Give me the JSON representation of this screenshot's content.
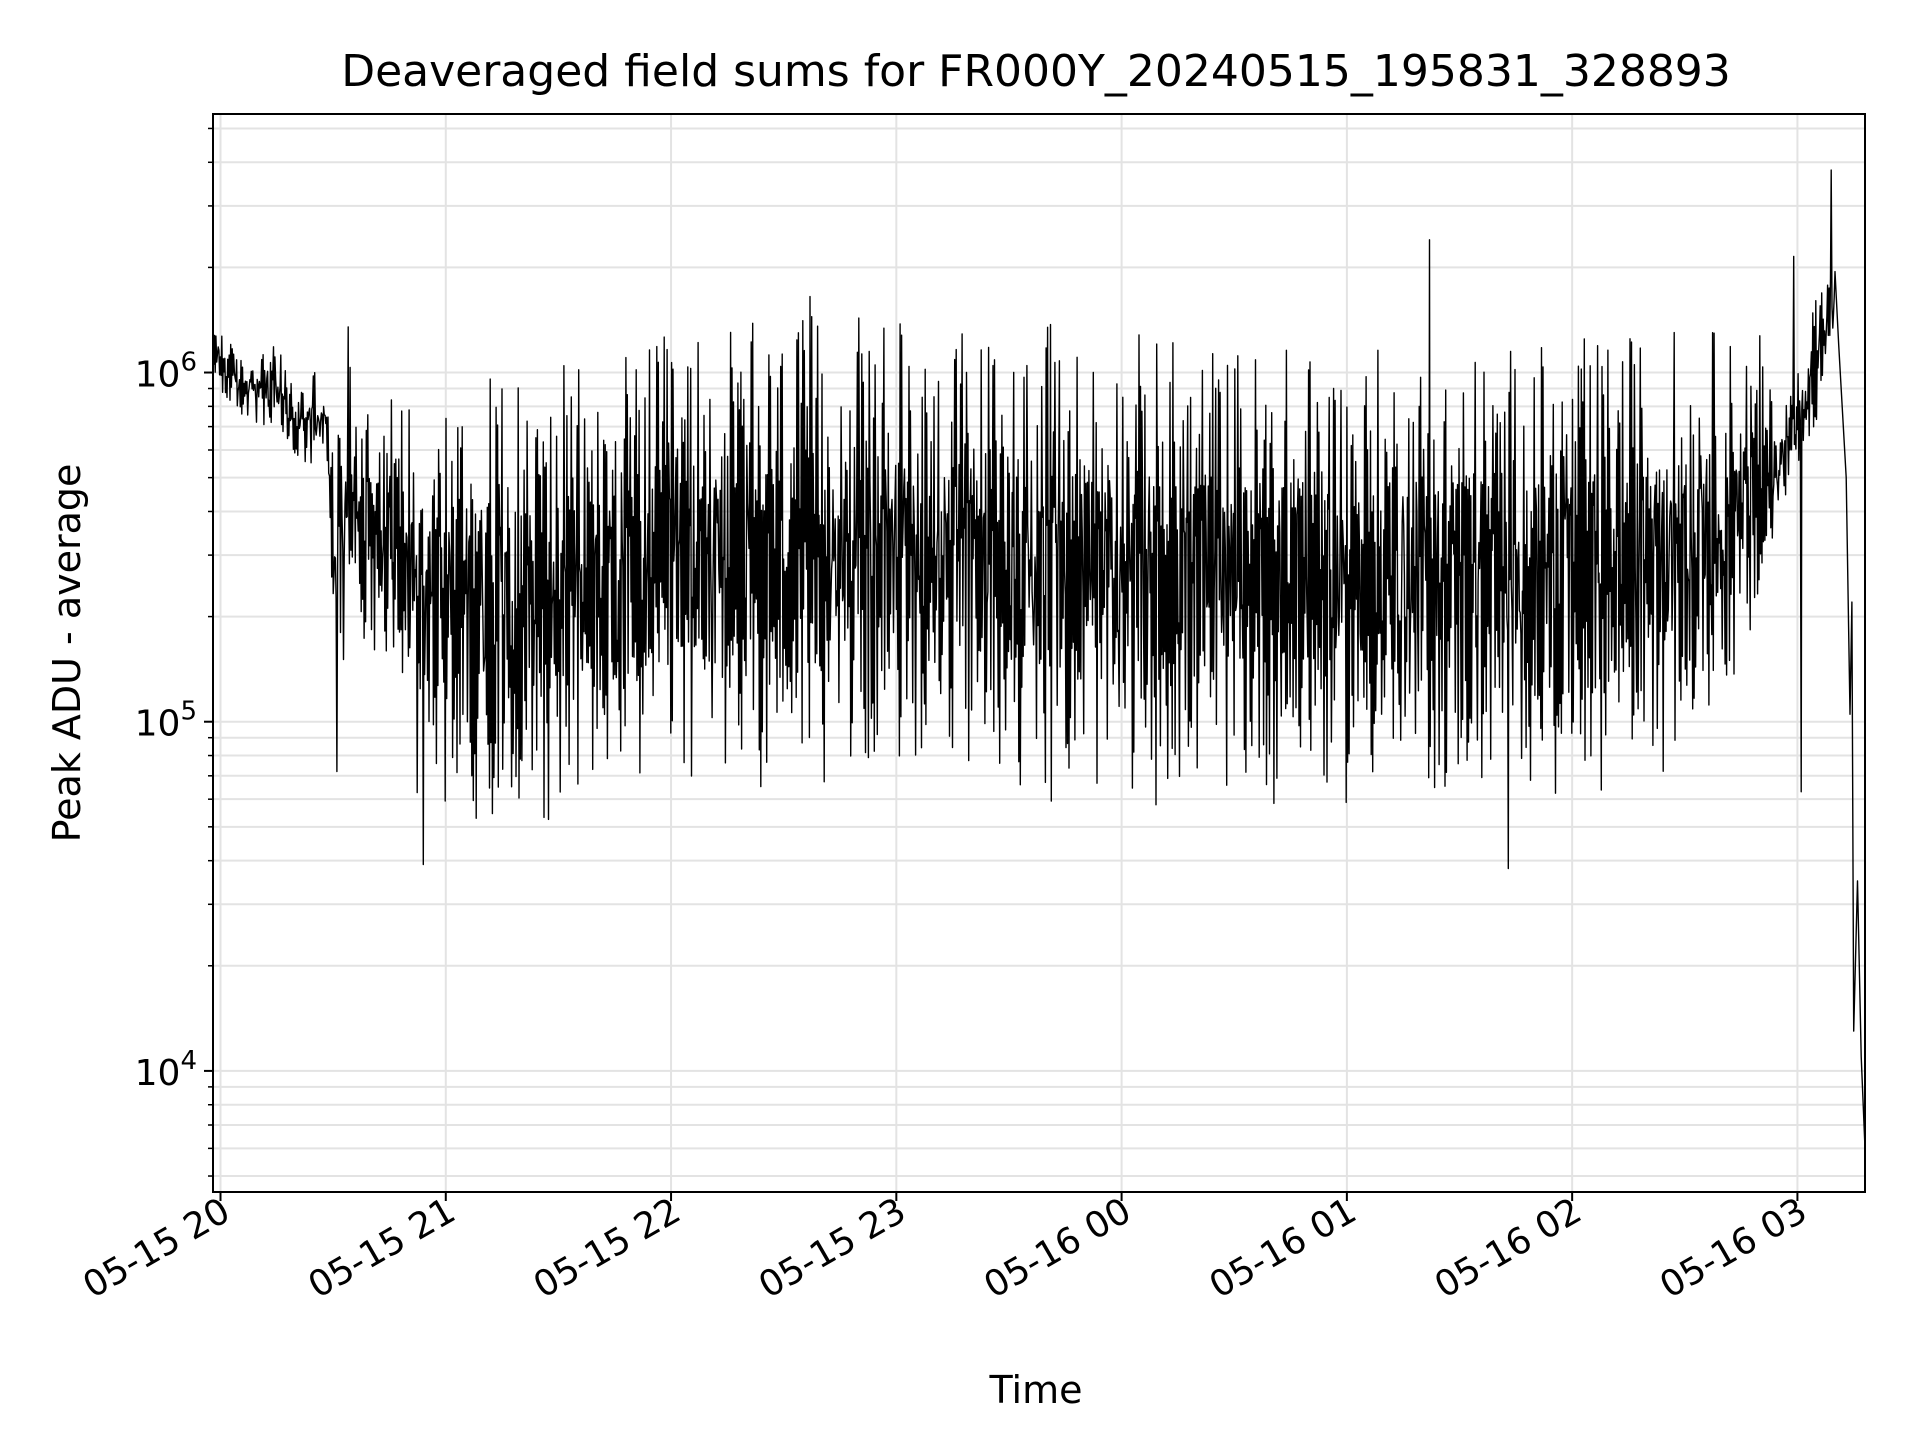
{
  "chart_data": {
    "type": "line",
    "title": "Deaveraged field sums for FR000Y_20240515_195831_328893",
    "xlabel": "Time",
    "ylabel": "Peak ADU - average",
    "yscale": "log",
    "ylim": [
      4500,
      5500000
    ],
    "xlim": [
      "2024-05-15T19:58",
      "2024-05-16T03:18"
    ],
    "x_ticks": [
      {
        "time": "2024-05-15T20:00",
        "label": "05-15 20"
      },
      {
        "time": "2024-05-15T21:00",
        "label": "05-15 21"
      },
      {
        "time": "2024-05-15T22:00",
        "label": "05-15 22"
      },
      {
        "time": "2024-05-15T23:00",
        "label": "05-15 23"
      },
      {
        "time": "2024-05-16T00:00",
        "label": "05-16 00"
      },
      {
        "time": "2024-05-16T01:00",
        "label": "05-16 01"
      },
      {
        "time": "2024-05-16T02:00",
        "label": "05-16 02"
      },
      {
        "time": "2024-05-16T03:00",
        "label": "05-16 03"
      }
    ],
    "y_ticks": [
      {
        "value": 10000,
        "base": "10",
        "exp": "4"
      },
      {
        "value": 100000,
        "base": "10",
        "exp": "5"
      },
      {
        "value": 1000000,
        "base": "10",
        "exp": "6"
      }
    ],
    "grid": true,
    "line_color": "#000000",
    "envelope": [
      {
        "time": "2024-05-15T19:58",
        "low": 900000,
        "high": 1500000
      },
      {
        "time": "2024-05-15T20:05",
        "low": 750000,
        "high": 1100000
      },
      {
        "time": "2024-05-15T20:15",
        "low": 650000,
        "high": 1200000
      },
      {
        "time": "2024-05-15T20:20",
        "low": 550000,
        "high": 900000
      },
      {
        "time": "2024-05-15T20:25",
        "low": 500000,
        "high": 1050000
      },
      {
        "time": "2024-05-15T20:28",
        "low": 600000,
        "high": 900000
      },
      {
        "time": "2024-05-15T20:30",
        "low": 150000,
        "high": 600000
      },
      {
        "time": "2024-05-15T20:35",
        "low": 150000,
        "high": 1100000
      },
      {
        "time": "2024-05-15T20:45",
        "low": 150000,
        "high": 900000
      },
      {
        "time": "2024-05-15T20:52",
        "low": 60000,
        "high": 1000000
      },
      {
        "time": "2024-05-15T21:00",
        "low": 50000,
        "high": 1000000
      },
      {
        "time": "2024-05-15T21:30",
        "low": 50000,
        "high": 1050000
      },
      {
        "time": "2024-05-15T22:00",
        "low": 60000,
        "high": 1300000
      },
      {
        "time": "2024-05-15T22:30",
        "low": 60000,
        "high": 1450000
      },
      {
        "time": "2024-05-15T23:00",
        "low": 70000,
        "high": 1450000
      },
      {
        "time": "2024-05-15T23:30",
        "low": 60000,
        "high": 1400000
      },
      {
        "time": "2024-05-16T00:00",
        "low": 55000,
        "high": 1350000
      },
      {
        "time": "2024-05-16T00:30",
        "low": 55000,
        "high": 1250000
      },
      {
        "time": "2024-05-16T01:00",
        "low": 55000,
        "high": 1200000
      },
      {
        "time": "2024-05-16T01:30",
        "low": 55000,
        "high": 1200000
      },
      {
        "time": "2024-05-16T02:00",
        "low": 60000,
        "high": 1250000
      },
      {
        "time": "2024-05-16T02:30",
        "low": 70000,
        "high": 1400000
      },
      {
        "time": "2024-05-16T02:50",
        "low": 150000,
        "high": 1300000
      },
      {
        "time": "2024-05-16T02:55",
        "low": 400000,
        "high": 700000
      },
      {
        "time": "2024-05-16T03:05",
        "low": 700000,
        "high": 1800000
      },
      {
        "time": "2024-05-16T03:10",
        "low": 1200000,
        "high": 2000000
      }
    ],
    "spikes": [
      {
        "time": "2024-05-15T20:34",
        "value": 1350000
      },
      {
        "time": "2024-05-15T20:31",
        "value": 72000
      },
      {
        "time": "2024-05-15T20:54",
        "value": 39000
      },
      {
        "time": "2024-05-15T22:37",
        "value": 1650000
      },
      {
        "time": "2024-05-16T01:22",
        "value": 2400000
      },
      {
        "time": "2024-05-16T01:43",
        "value": 38000
      },
      {
        "time": "2024-05-16T02:59",
        "value": 2150000
      },
      {
        "time": "2024-05-16T03:01",
        "value": 63000
      },
      {
        "time": "2024-05-16T03:09",
        "value": 3800000
      }
    ],
    "tail": [
      {
        "time": "2024-05-16T03:11",
        "value": 1200000
      },
      {
        "time": "2024-05-16T03:13",
        "value": 500000
      },
      {
        "time": "2024-05-16T03:14",
        "value": 105000
      },
      {
        "time": "2024-05-16T03:14.5",
        "value": 220000
      },
      {
        "time": "2024-05-16T03:15",
        "value": 13000
      },
      {
        "time": "2024-05-16T03:16",
        "value": 35000
      },
      {
        "time": "2024-05-16T03:17",
        "value": 11000
      },
      {
        "time": "2024-05-16T03:18",
        "value": 6000
      }
    ]
  }
}
